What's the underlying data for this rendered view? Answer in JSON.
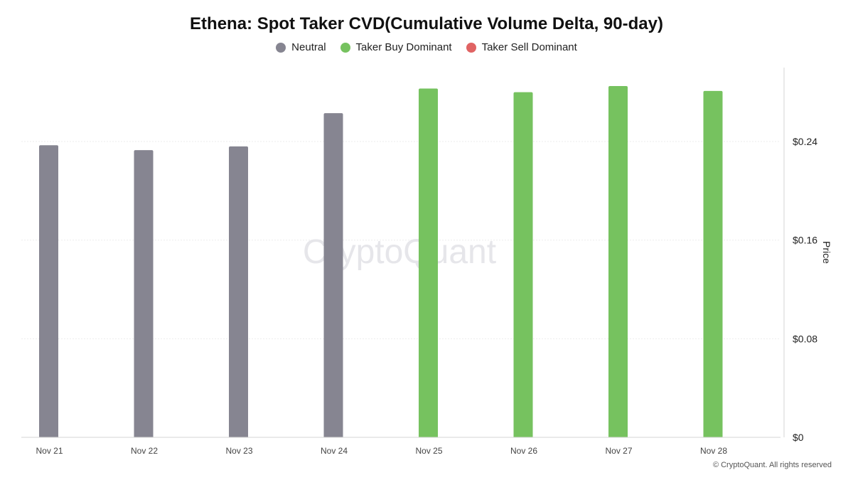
{
  "chart_data": {
    "type": "bar",
    "title": "Ethena: Spot Taker CVD(Cumulative Volume Delta, 90-day)",
    "categories": [
      "Nov 21",
      "Nov 22",
      "Nov 23",
      "Nov 24",
      "Nov 25",
      "Nov 26",
      "Nov 27",
      "Nov 28"
    ],
    "values": [
      0.237,
      0.233,
      0.236,
      0.263,
      0.283,
      0.28,
      0.285,
      0.281
    ],
    "bar_status": [
      "Neutral",
      "Neutral",
      "Neutral",
      "Neutral",
      "Taker Buy Dominant",
      "Taker Buy Dominant",
      "Taker Buy Dominant",
      "Taker Buy Dominant"
    ],
    "legend": [
      {
        "name": "Neutral",
        "color": "#868591"
      },
      {
        "name": "Taker Buy Dominant",
        "color": "#76c25f"
      },
      {
        "name": "Taker Sell Dominant",
        "color": "#e06363"
      }
    ],
    "ylabel": "Price",
    "yticks": [
      0,
      0.08,
      0.16,
      0.24
    ],
    "ytick_labels": [
      "$0",
      "$0.08",
      "$0.16",
      "$0.24"
    ],
    "ylim": [
      0,
      0.3
    ],
    "y_axis_side": "right",
    "legend_position": "top-center",
    "grid": true
  },
  "watermark": "CryptoQuant",
  "copyright": "© CryptoQuant. All rights reserved"
}
